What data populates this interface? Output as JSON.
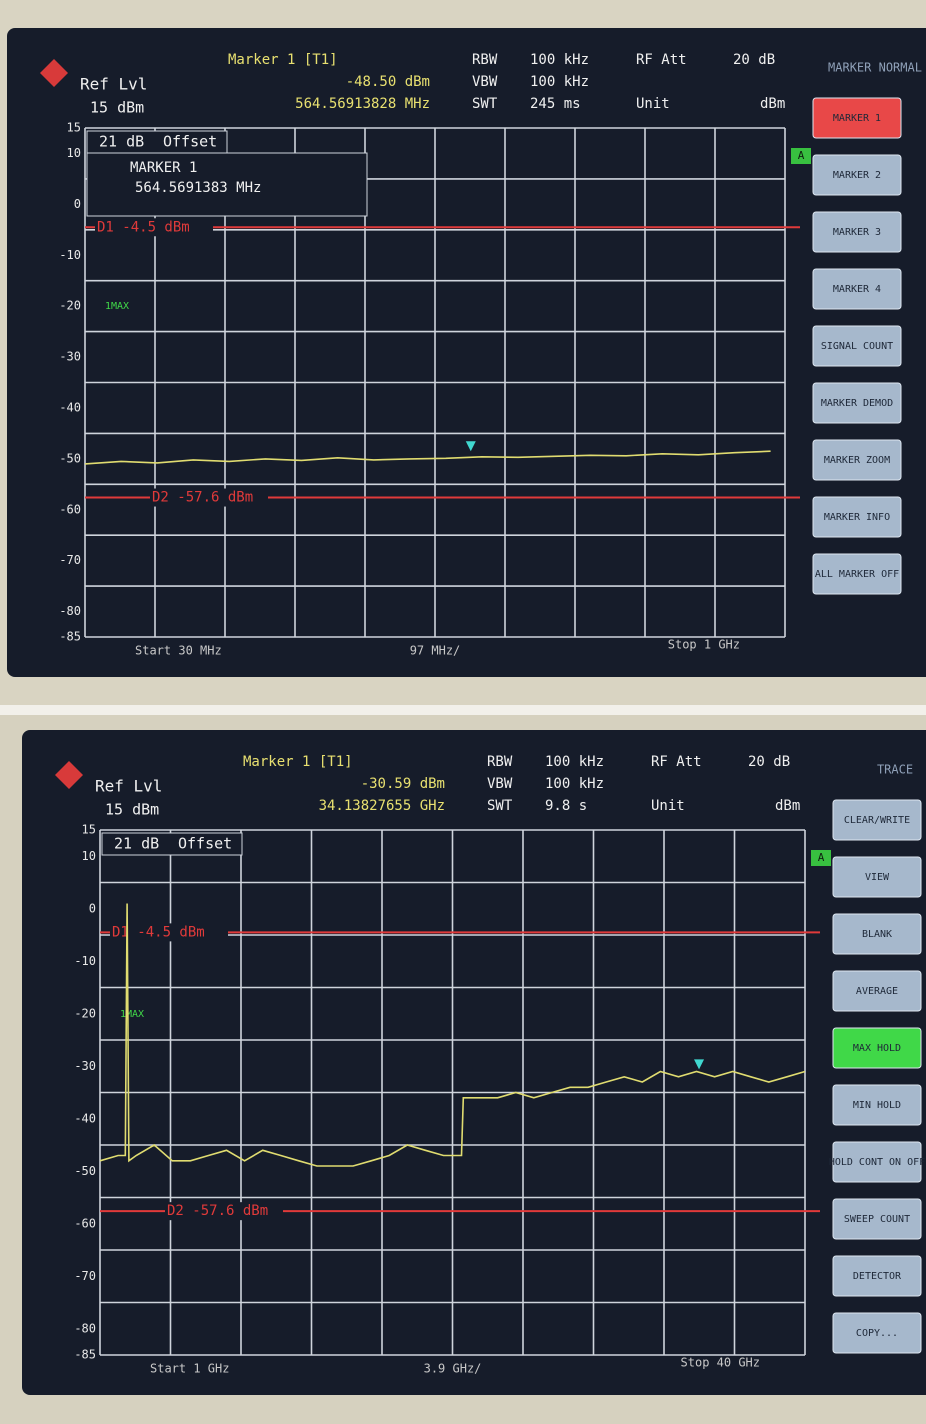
{
  "chart_data": [
    {
      "type": "line",
      "ref_label": "Ref Lvl",
      "ref_value": "15 dBm",
      "marker_title": "Marker 1 [T1]",
      "marker_level": "-48.50 dBm",
      "marker_freq": "564.56913828 MHz",
      "settings": [
        [
          "RBW",
          "100 kHz"
        ],
        [
          "VBW",
          "100 kHz"
        ],
        [
          "SWT",
          "245 ms"
        ]
      ],
      "rf_att": "RF Att",
      "rf_att_value": "20 dB",
      "unit": "Unit",
      "unit_value": "dBm",
      "offset_value": "21 dB",
      "offset_label": "Offset",
      "marker_box_title": "MARKER 1",
      "marker_box_freq": "564.5691383 MHz",
      "menu_title": "MARKER NORMAL",
      "softkeys": [
        "MARKER 1",
        "MARKER 2",
        "MARKER 3",
        "MARKER 4",
        "SIGNAL COUNT",
        "MARKER DEMOD",
        "MARKER ZOOM",
        "MARKER INFO",
        "ALL MARKER OFF"
      ],
      "active_softkey": 0,
      "active_color": "#e84848",
      "status": "A",
      "trace_label": "1MAX",
      "start": "Start 30 MHz",
      "span": "97 MHz/",
      "stop": "Stop 1 GHz",
      "display_lines": [
        {
          "label": "D1 -4.5 dBm",
          "value": -4.5
        },
        {
          "label": "D2 -57.6 dBm",
          "value": -57.6
        }
      ],
      "ylim": [
        -85,
        15
      ],
      "yticks": [
        15,
        10,
        0,
        -10,
        -20,
        -30,
        -40,
        -50,
        -60,
        -70,
        -80,
        -85
      ],
      "xlim": [
        30,
        1000
      ],
      "x": [
        30,
        80,
        130,
        180,
        230,
        280,
        330,
        380,
        430,
        480,
        530,
        580,
        630,
        680,
        730,
        780,
        830,
        880,
        930,
        980
      ],
      "values": [
        -51,
        -50.5,
        -50.8,
        -50.2,
        -50.5,
        -50,
        -50.3,
        -49.8,
        -50.2,
        -50,
        -49.9,
        -49.6,
        -49.7,
        -49.5,
        -49.3,
        -49.4,
        -49,
        -49.2,
        -48.8,
        -48.5
      ],
      "color": "#e0dc70",
      "marker": {
        "x": 564.56913828,
        "y": -48.5
      }
    },
    {
      "type": "line",
      "ref_label": "Ref Lvl",
      "ref_value": "15 dBm",
      "marker_title": "Marker 1 [T1]",
      "marker_level": "-30.59 dBm",
      "marker_freq": "34.13827655 GHz",
      "settings": [
        [
          "RBW",
          "100 kHz"
        ],
        [
          "VBW",
          "100 kHz"
        ],
        [
          "SWT",
          "9.8 s"
        ]
      ],
      "rf_att": "RF Att",
      "rf_att_value": "20 dB",
      "unit": "Unit",
      "unit_value": "dBm",
      "offset_value": "21 dB",
      "offset_label": "Offset",
      "menu_title": "TRACE",
      "softkeys": [
        "CLEAR/WRITE",
        "VIEW",
        "BLANK",
        "AVERAGE",
        "MAX HOLD",
        "MIN HOLD",
        "HOLD CONT ON OFF",
        "SWEEP COUNT",
        "DETECTOR",
        "COPY..."
      ],
      "active_softkey": 4,
      "active_color": "#40d848",
      "status": "A",
      "trace_label": "1MAX",
      "start": "Start 1 GHz",
      "span": "3.9 GHz/",
      "stop": "Stop 40 GHz",
      "display_lines": [
        {
          "label": "D1 -4.5 dBm",
          "value": -4.5
        },
        {
          "label": "D2 -57.6 dBm",
          "value": -57.6
        }
      ],
      "ylim": [
        -85,
        15
      ],
      "yticks": [
        15,
        10,
        0,
        -10,
        -20,
        -30,
        -40,
        -50,
        -60,
        -70,
        -80,
        -85
      ],
      "xlim": [
        1,
        40
      ],
      "x": [
        1,
        2,
        2.4,
        2.5,
        2.6,
        3,
        4,
        5,
        6,
        7,
        8,
        9,
        10,
        11,
        12,
        13,
        14,
        15,
        16,
        17,
        18,
        19,
        20,
        21,
        21.1,
        22,
        23,
        24,
        25,
        26,
        27,
        28,
        29,
        30,
        31,
        32,
        33,
        34,
        35,
        36,
        37,
        38,
        39,
        40
      ],
      "values": [
        -48,
        -47,
        -47,
        1,
        -48,
        -47,
        -45,
        -48,
        -48,
        -47,
        -46,
        -48,
        -46,
        -47,
        -48,
        -49,
        -49,
        -49,
        -48,
        -47,
        -45,
        -46,
        -47,
        -47,
        -36,
        -36,
        -36,
        -35,
        -36,
        -35,
        -34,
        -34,
        -33,
        -32,
        -33,
        -31,
        -32,
        -31,
        -32,
        -31,
        -32,
        -33,
        -32,
        -31
      ],
      "color": "#e0dc70",
      "marker": {
        "x": 34.13827655,
        "y": -30.59
      }
    }
  ]
}
